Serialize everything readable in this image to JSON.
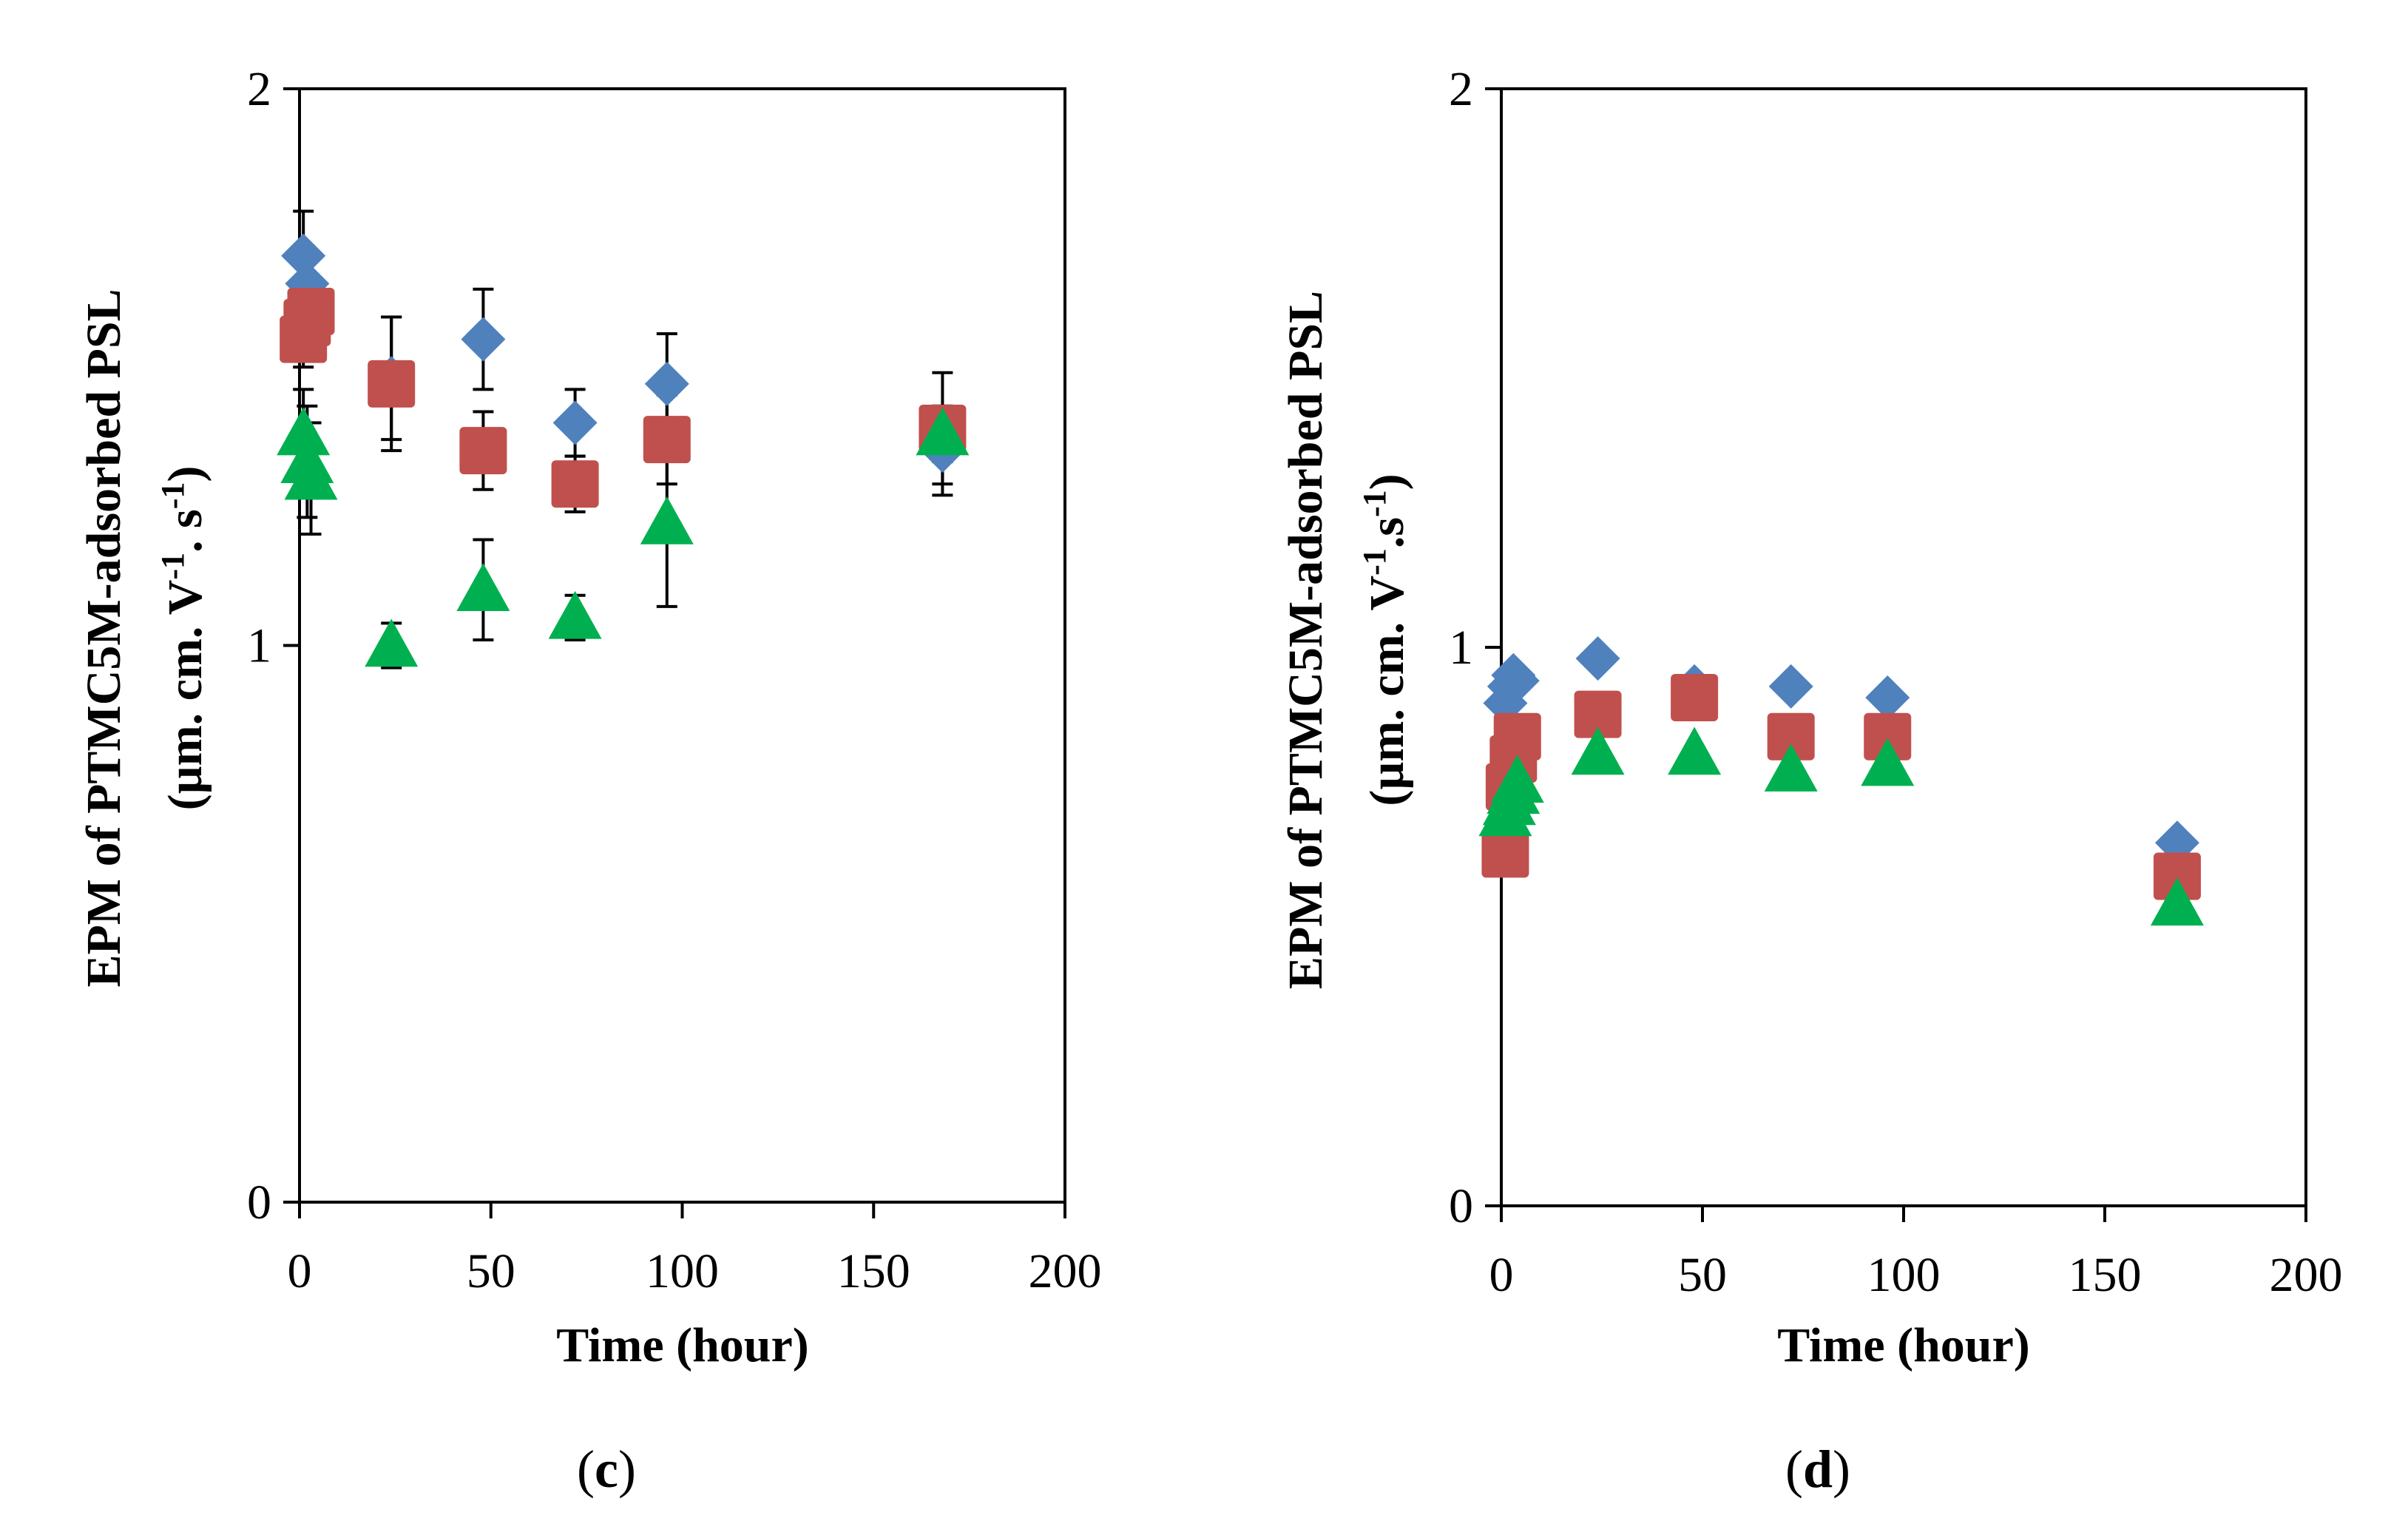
{
  "chart_data": [
    {
      "type": "scatter",
      "panel": "c",
      "xlabel": "Time (hour)",
      "ylabel_line1": "EPM of PTMC5M-adsorbed PSL",
      "ylabel_line2": {
        "a": "(µm. cm. V",
        "b": "-1",
        "c": ". s",
        "d": "-1",
        "e": ")"
      },
      "xlim": [
        0,
        200
      ],
      "ylim": [
        0,
        2
      ],
      "xticks": [
        0,
        50,
        100,
        150,
        200
      ],
      "yticks": [
        0,
        1,
        2
      ],
      "series": [
        {
          "name": "blue",
          "color": "#4F81BD",
          "marker": "diamond",
          "x": [
            1,
            2,
            3,
            24,
            48,
            72,
            96,
            168
          ],
          "y": [
            1.7,
            1.65,
            1.6,
            1.48,
            1.55,
            1.4,
            1.47,
            1.35
          ],
          "err": [
            0.08,
            0.06,
            0.05,
            0.11,
            0.09,
            0.06,
            0.09,
            0.08
          ]
        },
        {
          "name": "red",
          "color": "#C0504D",
          "marker": "square",
          "x": [
            1,
            2,
            3,
            24,
            48,
            72,
            96,
            168
          ],
          "y": [
            1.55,
            1.58,
            1.6,
            1.47,
            1.35,
            1.29,
            1.37,
            1.39
          ],
          "err": [
            0.05,
            0.05,
            0.05,
            0.12,
            0.07,
            0.05,
            0.08,
            0.1
          ]
        },
        {
          "name": "green",
          "color": "#00B050",
          "marker": "triangle",
          "x": [
            1,
            2,
            3,
            24,
            48,
            72,
            96,
            168
          ],
          "y": [
            1.38,
            1.33,
            1.3,
            1.0,
            1.1,
            1.05,
            1.22,
            1.38
          ],
          "err": [
            0.08,
            0.1,
            0.1,
            0.04,
            0.09,
            0.04,
            0.15,
            0.05
          ]
        }
      ]
    },
    {
      "type": "scatter",
      "panel": "d",
      "xlabel": "Time (hour)",
      "ylabel_line1": "EPM of PTMC5M-adsorbed PSL",
      "ylabel_line2": {
        "a": "(µm. cm. V",
        "b": "-1",
        "c": ".s",
        "d": "-1",
        "e": ")"
      },
      "xlim": [
        0,
        200
      ],
      "ylim": [
        0,
        2
      ],
      "xticks": [
        0,
        50,
        100,
        150,
        200
      ],
      "yticks": [
        0,
        1,
        2
      ],
      "series": [
        {
          "name": "blue",
          "color": "#4F81BD",
          "marker": "diamond",
          "x": [
            1,
            2,
            3,
            4,
            24,
            48,
            72,
            96,
            168
          ],
          "y": [
            0.9,
            0.93,
            0.95,
            0.94,
            0.98,
            0.93,
            0.93,
            0.91,
            0.65
          ],
          "err": [
            0,
            0,
            0,
            0,
            0,
            0,
            0,
            0,
            0
          ]
        },
        {
          "name": "red",
          "color": "#C0504D",
          "marker": "square",
          "x": [
            1,
            2,
            3,
            4,
            24,
            48,
            72,
            96,
            168
          ],
          "y": [
            0.63,
            0.75,
            0.8,
            0.84,
            0.88,
            0.91,
            0.84,
            0.84,
            0.59
          ],
          "err": [
            0,
            0,
            0,
            0,
            0.03,
            0.03,
            0,
            0,
            0
          ]
        },
        {
          "name": "green",
          "color": "#00B050",
          "marker": "triangle",
          "x": [
            1,
            2,
            3,
            4,
            24,
            48,
            72,
            96,
            168
          ],
          "y": [
            0.7,
            0.72,
            0.74,
            0.76,
            0.81,
            0.81,
            0.78,
            0.79,
            0.54
          ],
          "err": [
            0,
            0,
            0,
            0,
            0,
            0,
            0,
            0,
            0
          ]
        }
      ]
    }
  ]
}
